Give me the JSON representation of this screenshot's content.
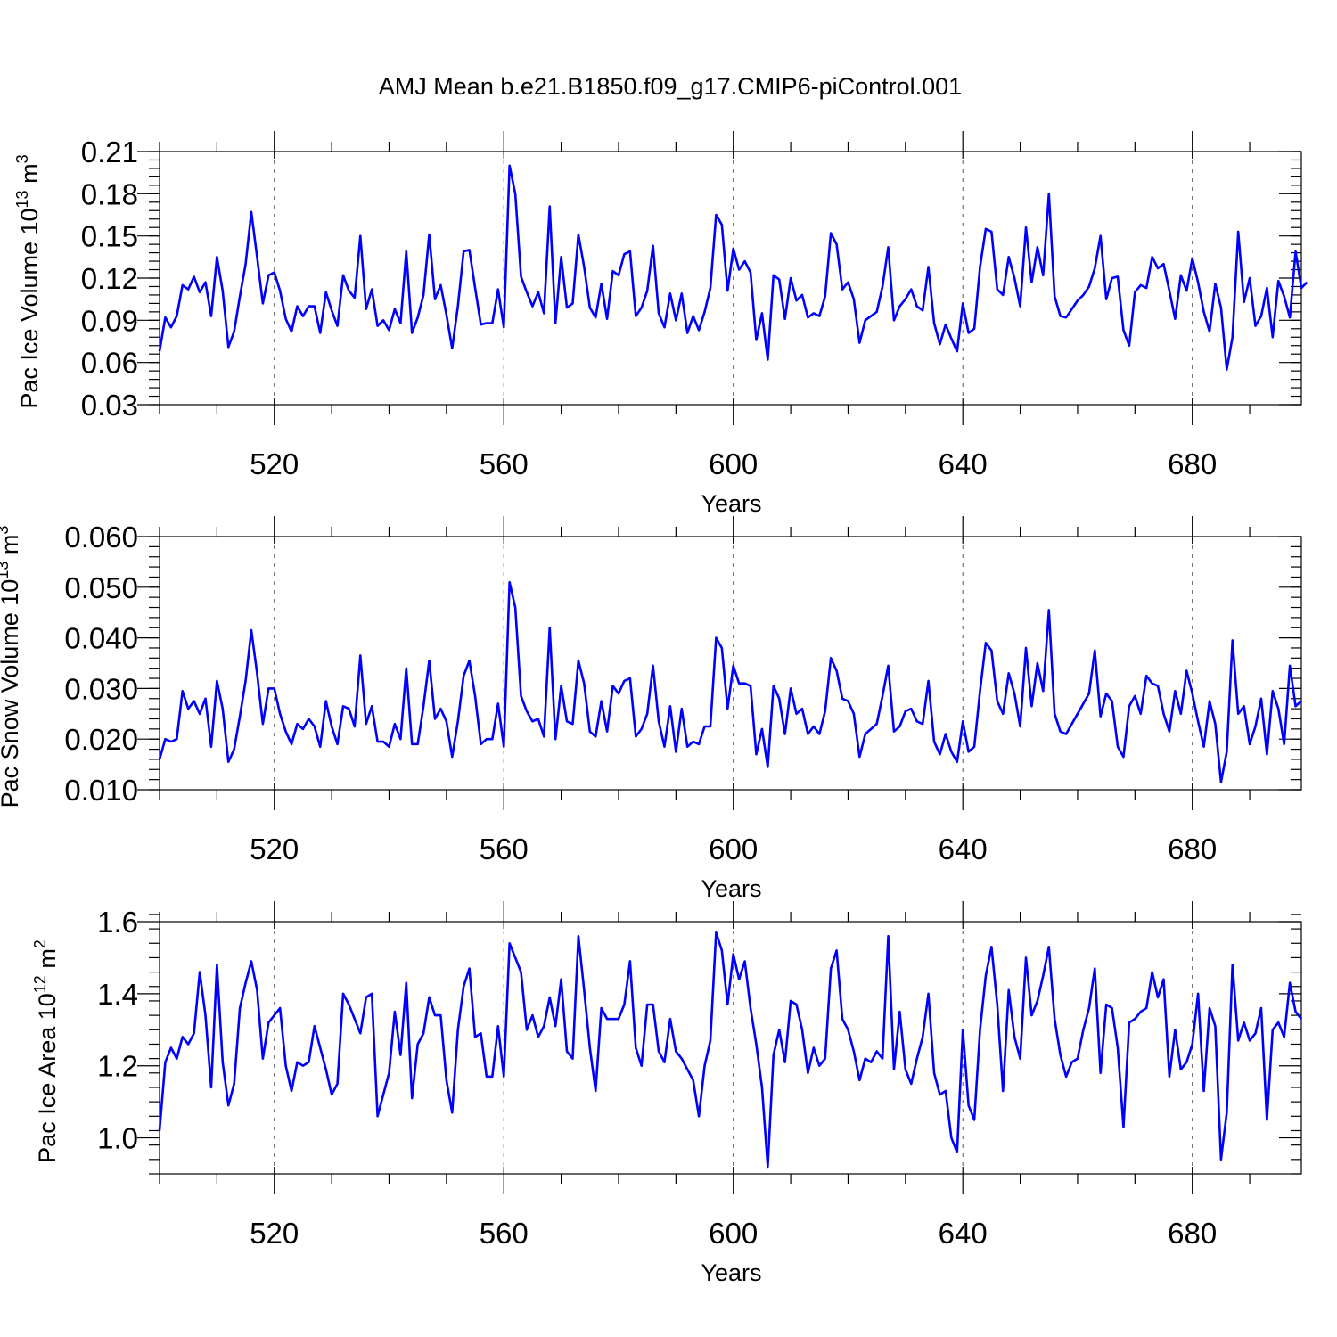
{
  "title": "AMJ Mean b.e21.B1850.f09_g17.CMIP6-piControl.001",
  "chart_data": [
    {
      "type": "line",
      "ylabel_main": "Pac Ice Volume 10",
      "ylabel_sup": "13",
      "ylabel_unit": " m",
      "ylabel_unit_sup": "3",
      "xlabel": "Years",
      "xlim": [
        500,
        699
      ],
      "ylim": [
        0.03,
        0.21
      ],
      "xticks": [
        520,
        560,
        600,
        640,
        680
      ],
      "yticks": [
        0.03,
        0.06,
        0.09,
        0.12,
        0.15,
        0.18,
        0.21
      ],
      "ytick_labels": [
        "0.03",
        "0.06",
        "0.09",
        "0.12",
        "0.15",
        "0.18",
        "0.21"
      ],
      "y_minor_step": 0.006,
      "x_minor_step": 10,
      "grid": "x-major dashed",
      "color": "#0000ff",
      "x_start": 500,
      "x_step": 1,
      "values": [
        0.068,
        0.092,
        0.085,
        0.093,
        0.115,
        0.112,
        0.121,
        0.11,
        0.117,
        0.093,
        0.135,
        0.111,
        0.071,
        0.082,
        0.107,
        0.13,
        0.167,
        0.135,
        0.102,
        0.122,
        0.124,
        0.111,
        0.091,
        0.082,
        0.1,
        0.093,
        0.1,
        0.1,
        0.081,
        0.11,
        0.097,
        0.086,
        0.122,
        0.111,
        0.106,
        0.15,
        0.098,
        0.112,
        0.086,
        0.09,
        0.083,
        0.098,
        0.088,
        0.139,
        0.081,
        0.092,
        0.108,
        0.151,
        0.105,
        0.115,
        0.094,
        0.07,
        0.1,
        0.139,
        0.14,
        0.113,
        0.087,
        0.088,
        0.088,
        0.112,
        0.085,
        0.2,
        0.18,
        0.121,
        0.11,
        0.1,
        0.11,
        0.095,
        0.171,
        0.088,
        0.135,
        0.099,
        0.102,
        0.151,
        0.128,
        0.099,
        0.092,
        0.116,
        0.091,
        0.125,
        0.122,
        0.137,
        0.139,
        0.093,
        0.099,
        0.111,
        0.143,
        0.095,
        0.085,
        0.109,
        0.09,
        0.109,
        0.081,
        0.093,
        0.083,
        0.096,
        0.113,
        0.165,
        0.158,
        0.111,
        0.141,
        0.126,
        0.132,
        0.124,
        0.076,
        0.095,
        0.062,
        0.122,
        0.119,
        0.091,
        0.12,
        0.104,
        0.108,
        0.092,
        0.095,
        0.093,
        0.107,
        0.152,
        0.144,
        0.112,
        0.117,
        0.105,
        0.074,
        0.09,
        0.093,
        0.096,
        0.114,
        0.142,
        0.09,
        0.1,
        0.105,
        0.112,
        0.1,
        0.097,
        0.128,
        0.088,
        0.073,
        0.087,
        0.077,
        0.068,
        0.102,
        0.081,
        0.084,
        0.128,
        0.155,
        0.153,
        0.112,
        0.108,
        0.135,
        0.12,
        0.1,
        0.156,
        0.117,
        0.142,
        0.122,
        0.18,
        0.107,
        0.093,
        0.092,
        0.098,
        0.104,
        0.108,
        0.114,
        0.127,
        0.15,
        0.105,
        0.12,
        0.121,
        0.083,
        0.072,
        0.11,
        0.115,
        0.113,
        0.135,
        0.127,
        0.13,
        0.111,
        0.091,
        0.122,
        0.111,
        0.134,
        0.117,
        0.096,
        0.082,
        0.116,
        0.099,
        0.055,
        0.078,
        0.153,
        0.103,
        0.12,
        0.086,
        0.093,
        0.113,
        0.078,
        0.118,
        0.107,
        0.092,
        0.139,
        0.113,
        0.117
      ]
    },
    {
      "type": "line",
      "ylabel_main": "Pac Snow Volume 10",
      "ylabel_sup": "13",
      "ylabel_unit": " m",
      "ylabel_unit_sup": "3",
      "xlabel": "Years",
      "xlim": [
        500,
        699
      ],
      "ylim": [
        0.01,
        0.06
      ],
      "xticks": [
        520,
        560,
        600,
        640,
        680
      ],
      "yticks": [
        0.01,
        0.02,
        0.03,
        0.04,
        0.05,
        0.06
      ],
      "ytick_labels": [
        "0.010",
        "0.020",
        "0.030",
        "0.040",
        "0.050",
        "0.060"
      ],
      "y_minor_step": 0.002,
      "x_minor_step": 10,
      "grid": "x-major dashed",
      "color": "#0000ff",
      "x_start": 500,
      "x_step": 1,
      "values": [
        0.016,
        0.02,
        0.0195,
        0.02,
        0.0295,
        0.026,
        0.0275,
        0.025,
        0.028,
        0.0185,
        0.0315,
        0.026,
        0.0155,
        0.018,
        0.0245,
        0.0315,
        0.0415,
        0.033,
        0.023,
        0.03,
        0.03,
        0.025,
        0.0215,
        0.019,
        0.023,
        0.022,
        0.024,
        0.0225,
        0.0185,
        0.0275,
        0.0225,
        0.019,
        0.0265,
        0.026,
        0.0225,
        0.0365,
        0.023,
        0.0265,
        0.0195,
        0.0195,
        0.0185,
        0.023,
        0.02,
        0.034,
        0.019,
        0.019,
        0.0265,
        0.0355,
        0.024,
        0.026,
        0.0235,
        0.0165,
        0.0235,
        0.0325,
        0.0355,
        0.0285,
        0.019,
        0.02,
        0.02,
        0.027,
        0.0185,
        0.051,
        0.046,
        0.0285,
        0.0255,
        0.0235,
        0.024,
        0.0205,
        0.042,
        0.02,
        0.0305,
        0.0235,
        0.023,
        0.0355,
        0.031,
        0.0215,
        0.0205,
        0.0275,
        0.0215,
        0.0305,
        0.029,
        0.0315,
        0.032,
        0.0205,
        0.022,
        0.025,
        0.0345,
        0.0235,
        0.0185,
        0.0265,
        0.0175,
        0.026,
        0.0185,
        0.0195,
        0.019,
        0.0225,
        0.0225,
        0.04,
        0.038,
        0.026,
        0.0345,
        0.031,
        0.031,
        0.0305,
        0.017,
        0.022,
        0.0145,
        0.0305,
        0.028,
        0.021,
        0.03,
        0.025,
        0.026,
        0.021,
        0.0225,
        0.021,
        0.0255,
        0.036,
        0.0335,
        0.028,
        0.0275,
        0.025,
        0.0165,
        0.021,
        0.022,
        0.023,
        0.0285,
        0.0345,
        0.0215,
        0.0225,
        0.0255,
        0.026,
        0.0235,
        0.023,
        0.0315,
        0.0195,
        0.017,
        0.021,
        0.0175,
        0.0155,
        0.0235,
        0.0175,
        0.0185,
        0.0295,
        0.039,
        0.0375,
        0.0275,
        0.025,
        0.033,
        0.029,
        0.0225,
        0.038,
        0.0265,
        0.035,
        0.0295,
        0.0455,
        0.025,
        0.0215,
        0.021,
        0.023,
        0.025,
        0.027,
        0.029,
        0.0375,
        0.0245,
        0.029,
        0.0275,
        0.0185,
        0.0165,
        0.0265,
        0.0285,
        0.025,
        0.0325,
        0.031,
        0.0305,
        0.025,
        0.0215,
        0.0295,
        0.025,
        0.0335,
        0.029,
        0.0235,
        0.0185,
        0.0275,
        0.023,
        0.0115,
        0.0175,
        0.0395,
        0.025,
        0.0265,
        0.019,
        0.0225,
        0.028,
        0.017,
        0.0295,
        0.026,
        0.019,
        0.0345,
        0.0265,
        0.0275
      ]
    },
    {
      "type": "line",
      "ylabel_main": "Pac Ice Area 10",
      "ylabel_sup": "12",
      "ylabel_unit": " m",
      "ylabel_unit_sup": "2",
      "xlabel": "Years",
      "xlim": [
        500,
        699
      ],
      "ylim": [
        0.9,
        1.6
      ],
      "xticks": [
        520,
        560,
        600,
        640,
        680
      ],
      "yticks": [
        1.0,
        1.2,
        1.4,
        1.6
      ],
      "ytick_labels": [
        "1.0",
        "1.2",
        "1.4",
        "1.6"
      ],
      "y_minor_step": 0.04,
      "x_minor_step": 10,
      "grid": "x-major dashed",
      "color": "#0000ff",
      "x_start": 500,
      "x_step": 1,
      "values": [
        1.02,
        1.21,
        1.25,
        1.22,
        1.28,
        1.26,
        1.29,
        1.46,
        1.34,
        1.14,
        1.48,
        1.21,
        1.09,
        1.15,
        1.36,
        1.43,
        1.49,
        1.41,
        1.22,
        1.32,
        1.34,
        1.36,
        1.2,
        1.13,
        1.21,
        1.2,
        1.21,
        1.31,
        1.25,
        1.19,
        1.12,
        1.15,
        1.4,
        1.37,
        1.33,
        1.29,
        1.39,
        1.4,
        1.06,
        1.12,
        1.18,
        1.35,
        1.23,
        1.43,
        1.11,
        1.26,
        1.29,
        1.39,
        1.34,
        1.34,
        1.16,
        1.07,
        1.3,
        1.42,
        1.47,
        1.28,
        1.29,
        1.17,
        1.17,
        1.31,
        1.17,
        1.54,
        1.5,
        1.46,
        1.3,
        1.34,
        1.28,
        1.31,
        1.39,
        1.31,
        1.44,
        1.24,
        1.22,
        1.56,
        1.41,
        1.25,
        1.13,
        1.36,
        1.33,
        1.33,
        1.33,
        1.37,
        1.49,
        1.25,
        1.2,
        1.37,
        1.37,
        1.24,
        1.21,
        1.33,
        1.24,
        1.22,
        1.19,
        1.16,
        1.06,
        1.2,
        1.27,
        1.57,
        1.52,
        1.37,
        1.51,
        1.44,
        1.49,
        1.36,
        1.26,
        1.14,
        0.92,
        1.23,
        1.3,
        1.21,
        1.38,
        1.37,
        1.3,
        1.18,
        1.25,
        1.2,
        1.22,
        1.47,
        1.52,
        1.33,
        1.3,
        1.24,
        1.16,
        1.22,
        1.21,
        1.24,
        1.22,
        1.56,
        1.19,
        1.35,
        1.19,
        1.15,
        1.22,
        1.28,
        1.4,
        1.18,
        1.12,
        1.13,
        1.0,
        0.96,
        1.3,
        1.09,
        1.05,
        1.3,
        1.45,
        1.53,
        1.37,
        1.13,
        1.41,
        1.28,
        1.22,
        1.5,
        1.34,
        1.38,
        1.45,
        1.53,
        1.33,
        1.23,
        1.17,
        1.21,
        1.22,
        1.3,
        1.36,
        1.47,
        1.18,
        1.37,
        1.36,
        1.25,
        1.03,
        1.32,
        1.33,
        1.35,
        1.36,
        1.46,
        1.39,
        1.44,
        1.17,
        1.3,
        1.19,
        1.21,
        1.26,
        1.4,
        1.13,
        1.36,
        1.31,
        0.94,
        1.07,
        1.48,
        1.27,
        1.32,
        1.27,
        1.29,
        1.36,
        1.05,
        1.3,
        1.32,
        1.28,
        1.43,
        1.35,
        1.33
      ]
    }
  ]
}
